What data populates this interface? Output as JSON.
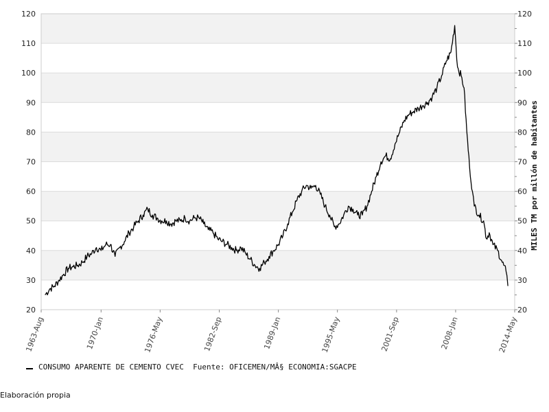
{
  "chart_data": {
    "type": "line",
    "title": "",
    "xlabel": "",
    "ylabel": "MILES TM por millón de habitantes",
    "ylim": [
      20,
      120
    ],
    "yticks": [
      20,
      30,
      40,
      50,
      60,
      70,
      80,
      90,
      100,
      110,
      120
    ],
    "y_axis_both_sides": true,
    "grid": "horizontal bands",
    "x_tick_labels": [
      "1963-Aug",
      "1970-Jan",
      "1976-May",
      "1982-Sep",
      "1989-Jan",
      "1995-May",
      "2001-Sep",
      "2008-Jan",
      "2014-May"
    ],
    "x_tick_dates": [
      1963.58,
      1970.0,
      1976.33,
      1982.67,
      1989.0,
      1995.33,
      2001.67,
      2008.0,
      2014.33
    ],
    "xlim": [
      1963.58,
      2014.33
    ],
    "legend_position": "bottom-left",
    "colors": {
      "line": "#000000",
      "band": "#f2f2f2",
      "grid": "#dcdcdc"
    },
    "series": [
      {
        "name": "CONSUMO APARENTE DE CEMENTO CVEC  Fuente: OFICEMEN/MÂ§ ECONOMIA:SGACPE",
        "points": [
          [
            1964.0,
            25
          ],
          [
            1964.5,
            27
          ],
          [
            1965.0,
            28
          ],
          [
            1965.5,
            30
          ],
          [
            1966.0,
            32
          ],
          [
            1966.5,
            34
          ],
          [
            1967.0,
            34.5
          ],
          [
            1967.5,
            35
          ],
          [
            1968.0,
            36
          ],
          [
            1968.5,
            38
          ],
          [
            1969.0,
            39
          ],
          [
            1969.5,
            41
          ],
          [
            1970.0,
            40
          ],
          [
            1970.5,
            42
          ],
          [
            1971.0,
            42
          ],
          [
            1971.5,
            38
          ],
          [
            1972.0,
            41
          ],
          [
            1972.5,
            43
          ],
          [
            1973.0,
            46
          ],
          [
            1973.5,
            48
          ],
          [
            1974.0,
            50
          ],
          [
            1974.5,
            52
          ],
          [
            1975.0,
            54
          ],
          [
            1975.5,
            52
          ],
          [
            1976.0,
            51
          ],
          [
            1976.5,
            50
          ],
          [
            1977.0,
            50
          ],
          [
            1977.5,
            49
          ],
          [
            1978.0,
            50
          ],
          [
            1978.5,
            50
          ],
          [
            1979.0,
            51
          ],
          [
            1979.5,
            50
          ],
          [
            1980.0,
            51
          ],
          [
            1980.5,
            51
          ],
          [
            1981.0,
            49
          ],
          [
            1981.5,
            47
          ],
          [
            1982.0,
            46
          ],
          [
            1982.5,
            44
          ],
          [
            1983.0,
            43
          ],
          [
            1983.5,
            42
          ],
          [
            1984.0,
            41
          ],
          [
            1984.5,
            40
          ],
          [
            1985.0,
            41
          ],
          [
            1985.5,
            39
          ],
          [
            1986.0,
            37
          ],
          [
            1986.5,
            35
          ],
          [
            1987.0,
            34
          ],
          [
            1987.5,
            36
          ],
          [
            1988.0,
            38
          ],
          [
            1988.5,
            40
          ],
          [
            1989.0,
            42
          ],
          [
            1989.5,
            45
          ],
          [
            1990.0,
            49
          ],
          [
            1990.5,
            53
          ],
          [
            1991.0,
            57
          ],
          [
            1991.5,
            60
          ],
          [
            1992.0,
            62
          ],
          [
            1992.5,
            61
          ],
          [
            1993.0,
            62
          ],
          [
            1993.5,
            59
          ],
          [
            1994.0,
            55
          ],
          [
            1994.5,
            52
          ],
          [
            1995.0,
            48
          ],
          [
            1995.5,
            49
          ],
          [
            1996.0,
            52
          ],
          [
            1996.5,
            55
          ],
          [
            1997.0,
            54
          ],
          [
            1997.5,
            52
          ],
          [
            1998.0,
            52
          ],
          [
            1998.5,
            55
          ],
          [
            1999.0,
            60
          ],
          [
            1999.5,
            65
          ],
          [
            2000.0,
            70
          ],
          [
            2000.5,
            72
          ],
          [
            2001.0,
            71
          ],
          [
            2001.5,
            76
          ],
          [
            2002.0,
            80
          ],
          [
            2002.5,
            84
          ],
          [
            2003.0,
            86
          ],
          [
            2003.5,
            87
          ],
          [
            2004.0,
            88
          ],
          [
            2004.5,
            89
          ],
          [
            2005.0,
            90
          ],
          [
            2005.5,
            92
          ],
          [
            2006.0,
            95
          ],
          [
            2006.5,
            99
          ],
          [
            2007.0,
            104
          ],
          [
            2007.5,
            107
          ],
          [
            2007.9,
            116
          ],
          [
            2008.2,
            102
          ],
          [
            2008.6,
            99
          ],
          [
            2008.9,
            95
          ],
          [
            2009.2,
            80
          ],
          [
            2009.5,
            68
          ],
          [
            2009.8,
            60
          ],
          [
            2010.0,
            55
          ],
          [
            2010.5,
            52
          ],
          [
            2011.0,
            50
          ],
          [
            2011.3,
            44
          ],
          [
            2011.6,
            46
          ],
          [
            2012.0,
            42
          ],
          [
            2012.5,
            40
          ],
          [
            2013.0,
            36
          ],
          [
            2013.4,
            33
          ],
          [
            2013.6,
            28
          ]
        ]
      }
    ]
  },
  "legend": {
    "text": "CONSUMO APARENTE DE CEMENTO CVEC  Fuente: OFICEMEN/MÂ§ ECONOMIA:SGACPE"
  },
  "footer": {
    "text": "Elaboración propia"
  }
}
